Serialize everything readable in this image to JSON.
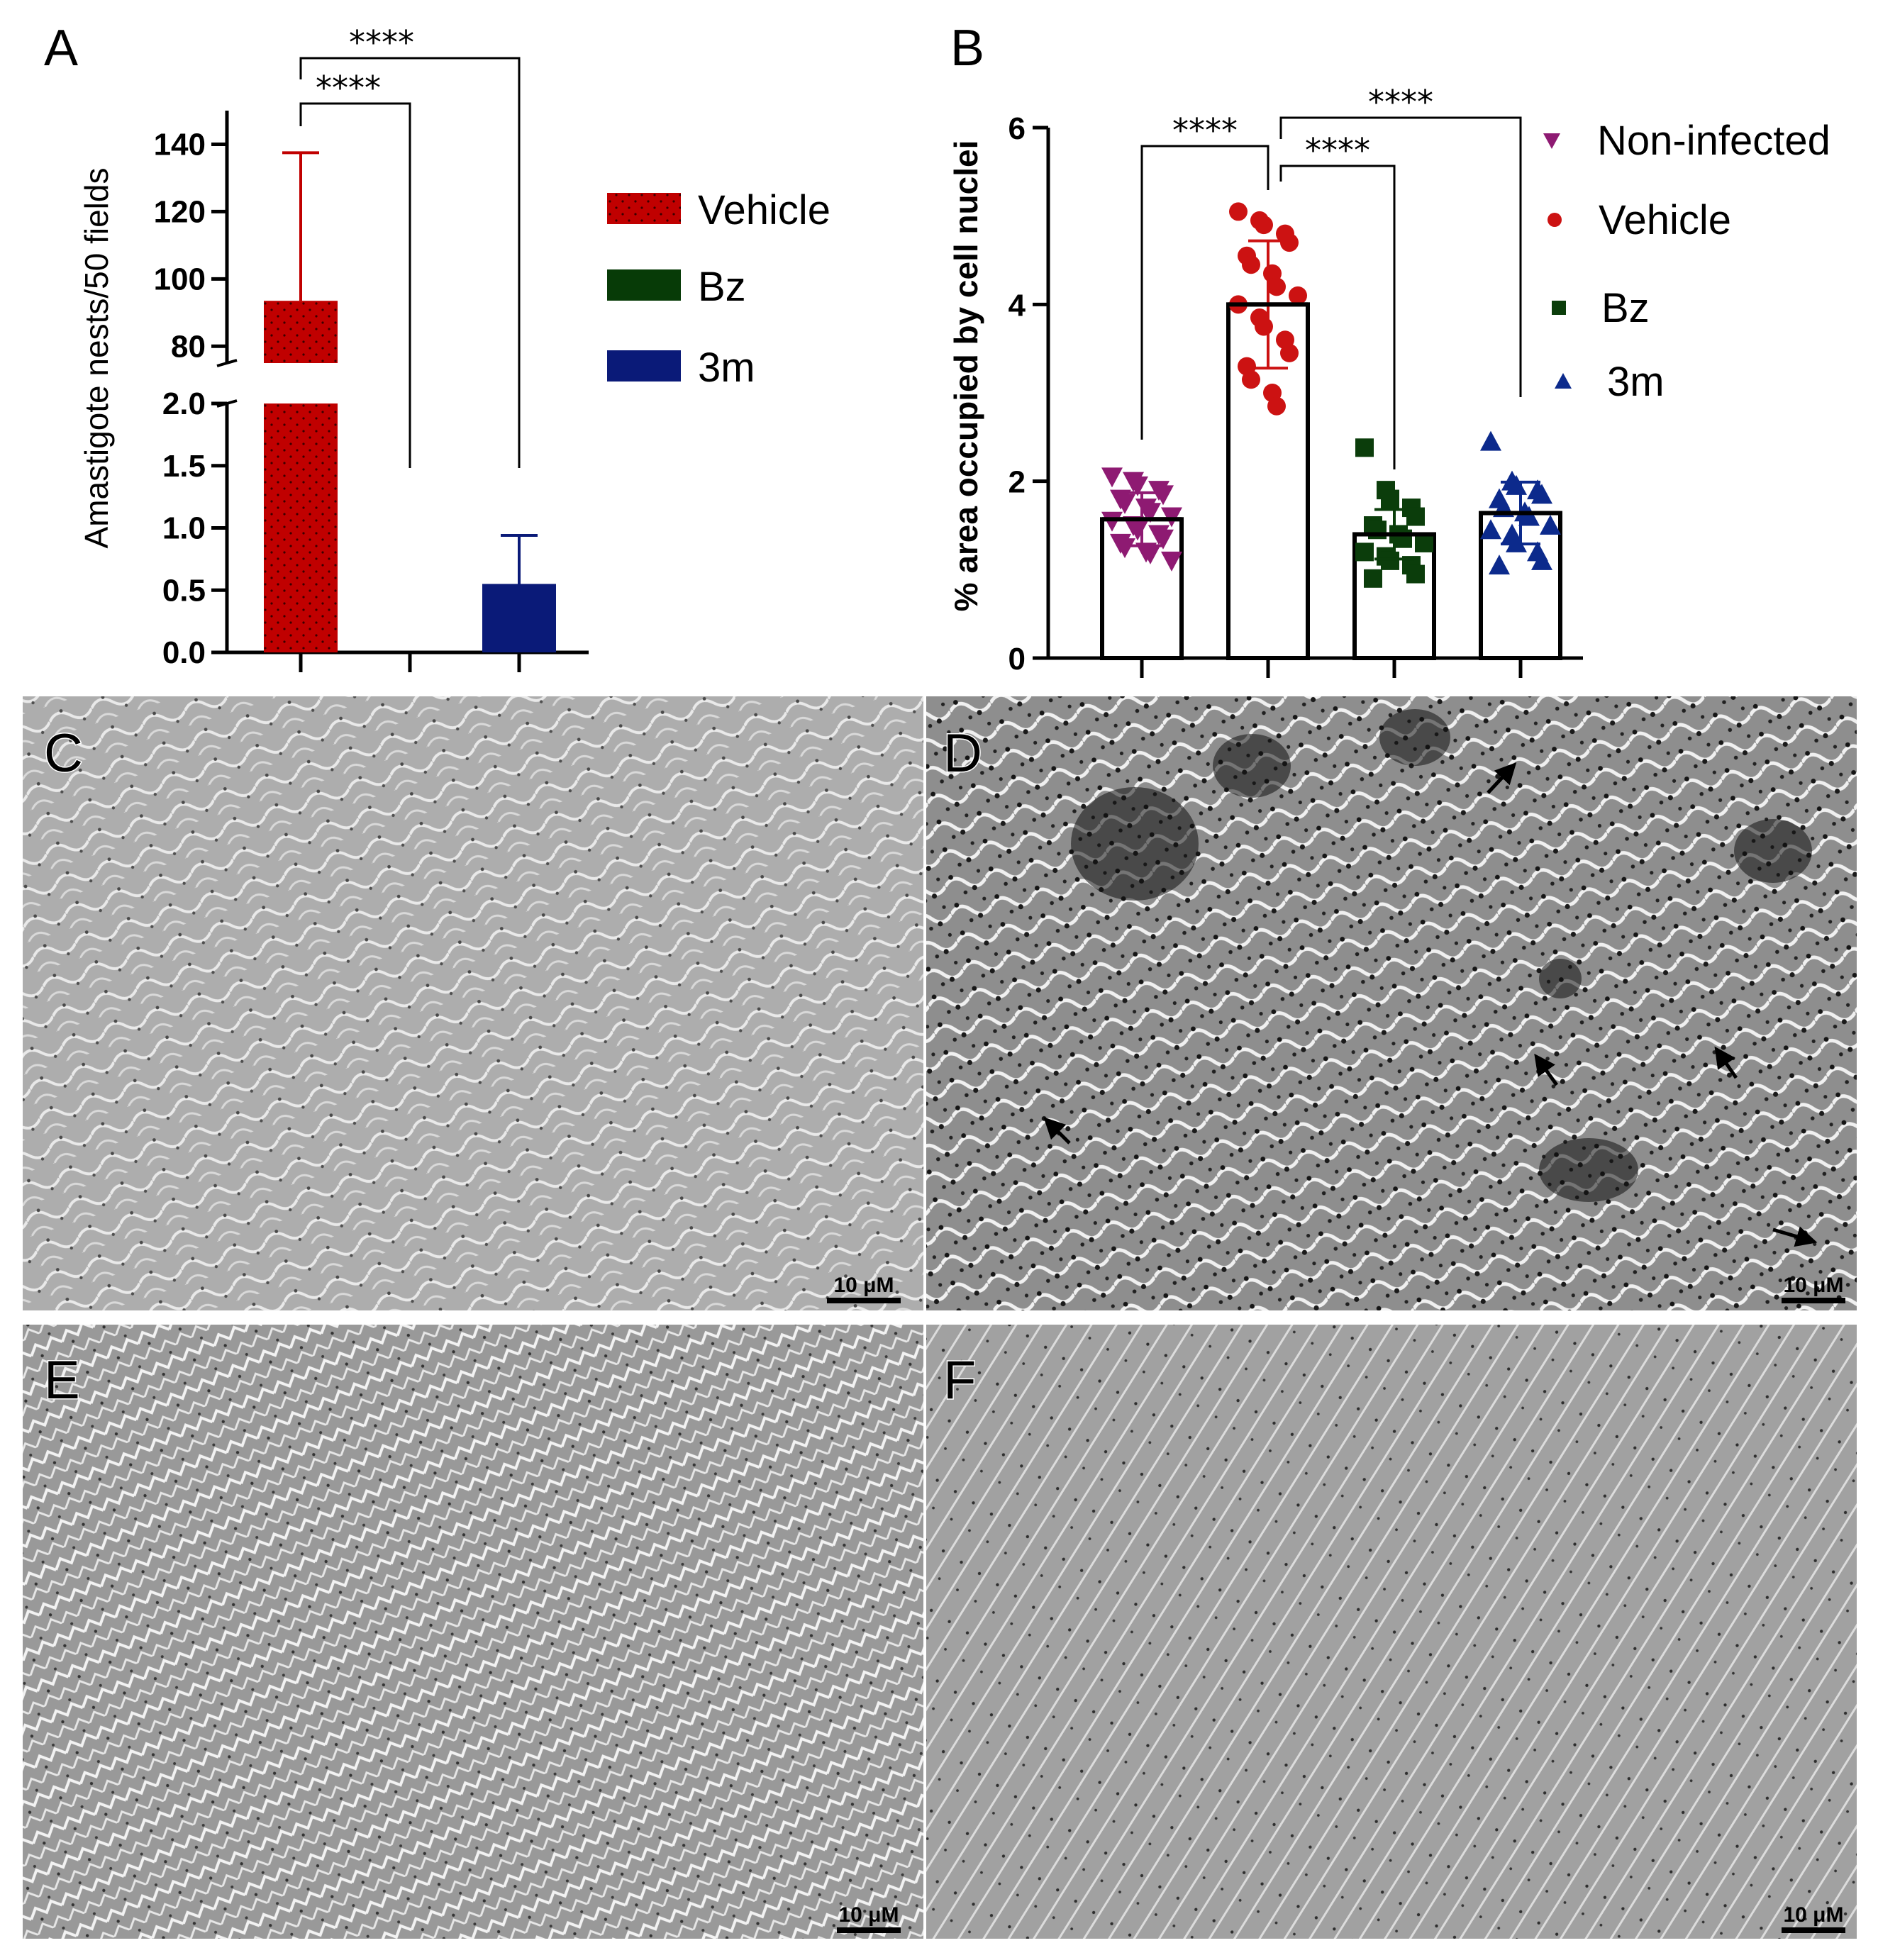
{
  "panel_labels": {
    "a": "A",
    "b": "B"
  },
  "chart_data": [
    {
      "type": "bar",
      "panel": "A",
      "ylabel": "Amastigote nests/50 fields",
      "categories": [
        "Vehicle",
        "Bz",
        "3m"
      ],
      "values": [
        93.5,
        0,
        0.55
      ],
      "error_upper": [
        137.5,
        0,
        0.94
      ],
      "colors": [
        "#c00000",
        "#073b07",
        "#0a1a78"
      ],
      "broken_axis": true,
      "ylim_lower": [
        0,
        2.0
      ],
      "ylim_upper": [
        75,
        150
      ],
      "yticks_lower": [
        "0.0",
        "0.5",
        "1.0",
        "1.5",
        "2.0"
      ],
      "yticks_upper": [
        "80",
        "100",
        "120",
        "140"
      ],
      "legend": [
        "Vehicle",
        "Bz",
        "3m"
      ],
      "significance": [
        {
          "from": "Vehicle",
          "to": "Bz",
          "label": "****"
        },
        {
          "from": "Vehicle",
          "to": "3m",
          "label": "****"
        }
      ]
    },
    {
      "type": "scatter",
      "panel": "B",
      "ylabel": "% area occupied by cell nuclei",
      "categories": [
        "Non-infected",
        "Vehicle",
        "Bz",
        "3m"
      ],
      "ylim": [
        0,
        6
      ],
      "yticks": [
        "0",
        "2",
        "4",
        "6"
      ],
      "means": [
        1.57,
        4.0,
        1.4,
        1.64
      ],
      "sd": [
        0.3,
        0.72,
        0.28,
        0.35
      ],
      "series": [
        {
          "name": "Non-infected",
          "marker": "triangle-down",
          "color": "#8e1a72",
          "values": [
            2.05,
            2.0,
            1.95,
            1.9,
            1.85,
            1.8,
            1.75,
            1.7,
            1.65,
            1.6,
            1.55,
            1.5,
            1.45,
            1.4,
            1.35,
            1.3,
            1.25,
            1.2,
            1.18,
            1.1
          ]
        },
        {
          "name": "Vehicle",
          "marker": "circle",
          "color": "#cc1212",
          "values": [
            5.05,
            4.95,
            4.9,
            4.8,
            4.7,
            4.55,
            4.45,
            4.35,
            4.2,
            4.1,
            4.0,
            3.85,
            3.75,
            3.6,
            3.45,
            3.3,
            3.15,
            3.0,
            2.85
          ]
        },
        {
          "name": "Bz",
          "marker": "square",
          "color": "#0b3d0b",
          "values": [
            2.38,
            1.9,
            1.8,
            1.7,
            1.6,
            1.5,
            1.45,
            1.4,
            1.35,
            1.3,
            1.2,
            1.15,
            1.1,
            1.05,
            0.95,
            0.9
          ]
        },
        {
          "name": "3m",
          "marker": "triangle-up",
          "color": "#0c2a8c",
          "values": [
            2.45,
            2.0,
            1.95,
            1.9,
            1.85,
            1.8,
            1.7,
            1.65,
            1.6,
            1.5,
            1.45,
            1.4,
            1.3,
            1.2,
            1.1,
            1.05
          ]
        }
      ],
      "legend": [
        "Non-infected",
        "Vehicle",
        "Bz",
        "3m"
      ],
      "significance": [
        {
          "from": "Non-infected",
          "to": "Vehicle",
          "label": "****"
        },
        {
          "from": "Vehicle",
          "to": "Bz",
          "label": "****"
        },
        {
          "from": "Vehicle",
          "to": "3m",
          "label": "****"
        }
      ]
    }
  ],
  "micrographs": [
    {
      "letter": "C",
      "scale_bar": "10 μM",
      "tone": "#a9a9a9",
      "arrows": 0
    },
    {
      "letter": "D",
      "scale_bar": "10 μM",
      "tone": "#8d8d8d",
      "arrows": 5
    },
    {
      "letter": "E",
      "scale_bar": "10 μM",
      "tone": "#9c9c9c",
      "arrows": 0
    },
    {
      "letter": "F",
      "scale_bar": "10 μM",
      "tone": "#a3a3a3",
      "arrows": 0
    }
  ]
}
